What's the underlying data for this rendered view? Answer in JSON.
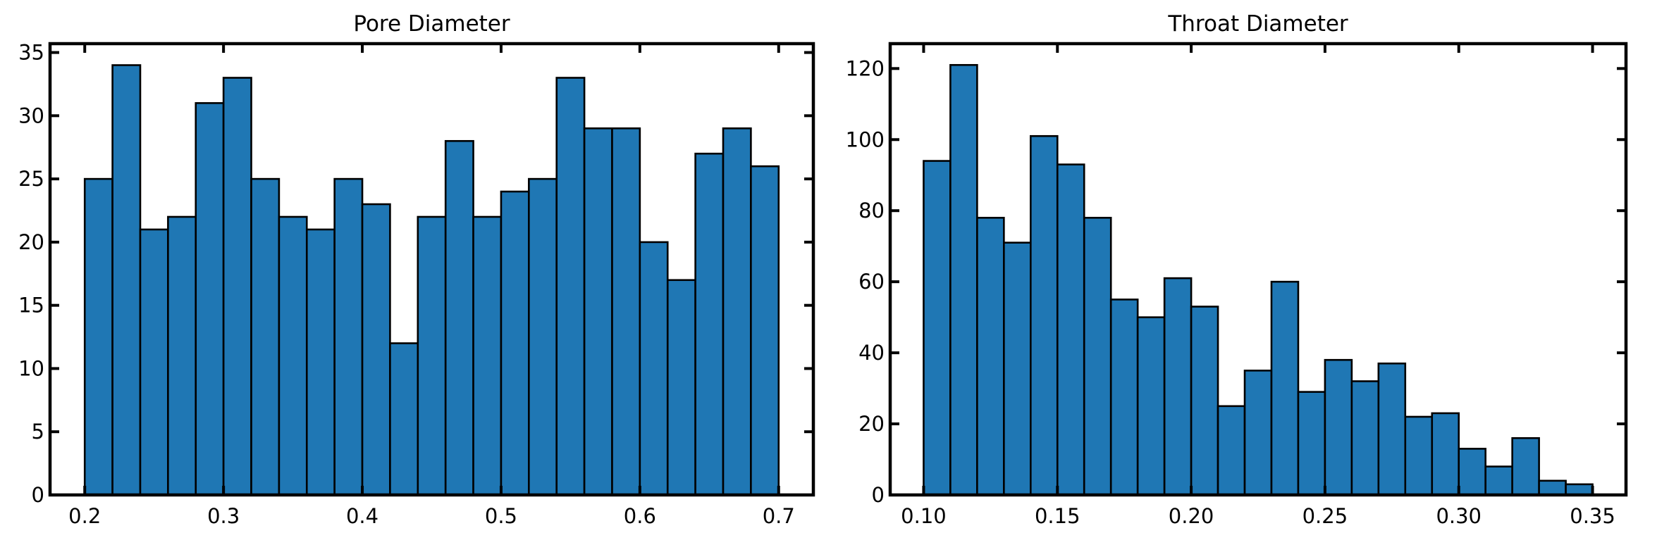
{
  "chart_data": [
    {
      "type": "bar",
      "title": "Pore Diameter",
      "xlabel": "",
      "ylabel": "",
      "bin_start": 0.2,
      "bin_width": 0.02,
      "values": [
        25,
        34,
        21,
        22,
        31,
        33,
        25,
        22,
        21,
        25,
        23,
        12,
        22,
        28,
        22,
        24,
        25,
        33,
        29,
        29,
        20,
        17,
        27,
        29,
        26
      ],
      "xlim": [
        0.175,
        0.725
      ],
      "ylim": [
        0,
        35.7
      ],
      "xticks": [
        0.2,
        0.3,
        0.4,
        0.5,
        0.6,
        0.7
      ],
      "xtick_labels": [
        "0.2",
        "0.3",
        "0.4",
        "0.5",
        "0.6",
        "0.7"
      ],
      "yticks": [
        0,
        5,
        10,
        15,
        20,
        25,
        30,
        35
      ],
      "ytick_labels": [
        "0",
        "5",
        "10",
        "15",
        "20",
        "25",
        "30",
        "35"
      ],
      "grid": false,
      "color": "#1f77b4"
    },
    {
      "type": "bar",
      "title": "Throat Diameter",
      "xlabel": "",
      "ylabel": "",
      "bin_start": 0.1,
      "bin_width": 0.01,
      "values": [
        94,
        121,
        78,
        71,
        101,
        93,
        78,
        55,
        50,
        61,
        53,
        25,
        35,
        60,
        29,
        38,
        32,
        37,
        22,
        23,
        13,
        8,
        16,
        4,
        3
      ],
      "xlim": [
        0.0875,
        0.3625
      ],
      "ylim": [
        0,
        127
      ],
      "xticks": [
        0.1,
        0.15,
        0.2,
        0.25,
        0.3,
        0.35
      ],
      "xtick_labels": [
        "0.10",
        "0.15",
        "0.20",
        "0.25",
        "0.30",
        "0.35"
      ],
      "yticks": [
        0,
        20,
        40,
        60,
        80,
        100,
        120
      ],
      "ytick_labels": [
        "0",
        "20",
        "40",
        "60",
        "80",
        "100",
        "120"
      ],
      "grid": false,
      "color": "#1f77b4"
    }
  ]
}
